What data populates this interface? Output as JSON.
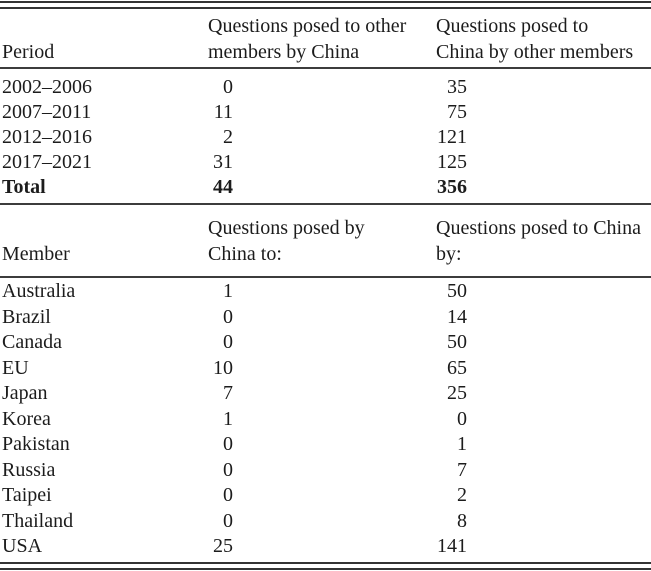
{
  "style": {
    "background": "#ffffff",
    "text_color": "#1c1c1c",
    "rule_color": "#3c3c3c"
  },
  "table1": {
    "header": {
      "col1": "Period",
      "col2_line1": "Questions posed to other",
      "col2_line2": "members by China",
      "col3_line1": "Questions posed to",
      "col3_line2": "China by other members"
    },
    "rows": [
      {
        "label": "2002–2006",
        "by_china": "0",
        "to_china": "35"
      },
      {
        "label": "2007–2011",
        "by_china": "11",
        "to_china": "75"
      },
      {
        "label": "2012–2016",
        "by_china": "2",
        "to_china": "121"
      },
      {
        "label": "2017–2021",
        "by_china": "31",
        "to_china": "125"
      },
      {
        "label": "Total",
        "by_china": "44",
        "to_china": "356"
      }
    ]
  },
  "table2": {
    "header": {
      "col1": "Member",
      "col2_line1": "Questions posed by",
      "col2_line2": "China to:",
      "col3_line1": "Questions posed to China",
      "col3_line2": "by:"
    },
    "rows": [
      {
        "label": "Australia",
        "by_china": "1",
        "to_china": "50"
      },
      {
        "label": "Brazil",
        "by_china": "0",
        "to_china": "14"
      },
      {
        "label": "Canada",
        "by_china": "0",
        "to_china": "50"
      },
      {
        "label": "EU",
        "by_china": "10",
        "to_china": "65"
      },
      {
        "label": "Japan",
        "by_china": "7",
        "to_china": "25"
      },
      {
        "label": "Korea",
        "by_china": "1",
        "to_china": "0"
      },
      {
        "label": "Pakistan",
        "by_china": "0",
        "to_china": "1"
      },
      {
        "label": "Russia",
        "by_china": "0",
        "to_china": "7"
      },
      {
        "label": "Taipei",
        "by_china": "0",
        "to_china": "2"
      },
      {
        "label": "Thailand",
        "by_china": "0",
        "to_china": "8"
      },
      {
        "label": "USA",
        "by_china": "25",
        "to_china": "141"
      }
    ]
  }
}
